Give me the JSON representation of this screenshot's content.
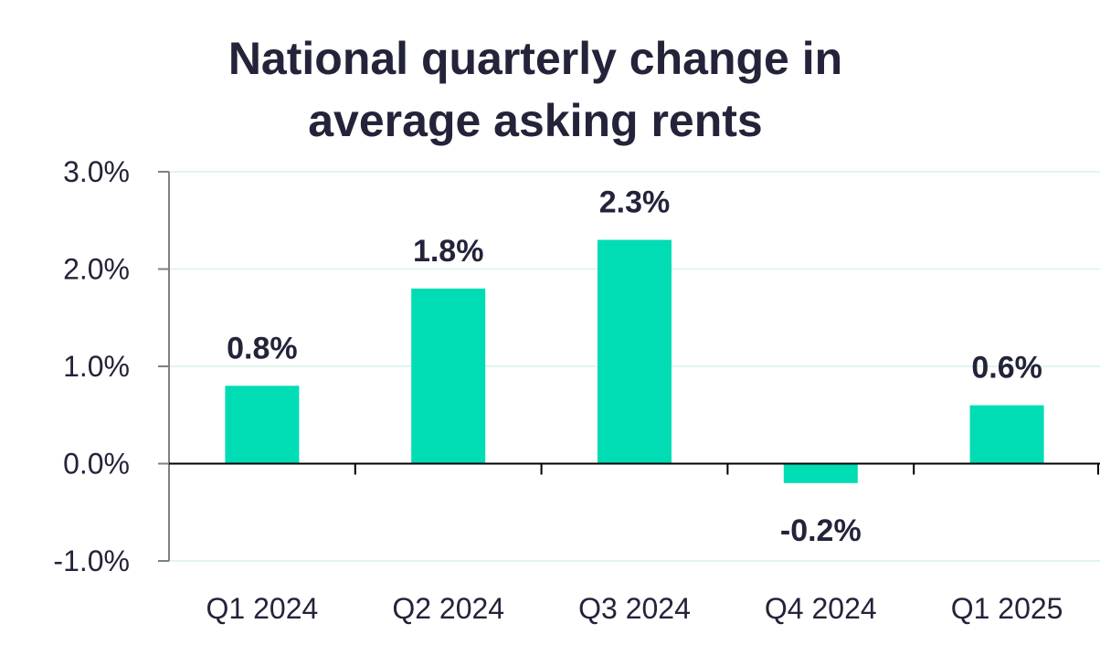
{
  "chart_data": {
    "type": "bar",
    "title_lines": [
      "National quarterly change in",
      "average asking rents"
    ],
    "categories": [
      "Q1 2024",
      "Q2 2024",
      "Q3 2024",
      "Q4 2024",
      "Q1 2025"
    ],
    "values": [
      0.8,
      1.8,
      2.3,
      -0.2,
      0.6
    ],
    "data_labels": [
      "0.8%",
      "1.8%",
      "2.3%",
      "-0.2%",
      "0.6%"
    ],
    "y_ticks": [
      3.0,
      2.0,
      1.0,
      0.0,
      -1.0
    ],
    "y_tick_labels": [
      "3.0%",
      "2.0%",
      "1.0%",
      "0.0%",
      "-1.0%"
    ],
    "ylim": [
      -1.0,
      3.0
    ],
    "xlabel": "",
    "ylabel": "",
    "grid": true,
    "legend": "none",
    "colors": {
      "bar": "#00dcb3",
      "text": "#23233a",
      "grid": "#d4f3ec",
      "axis": "#808080",
      "zero_line": "#000000"
    }
  }
}
